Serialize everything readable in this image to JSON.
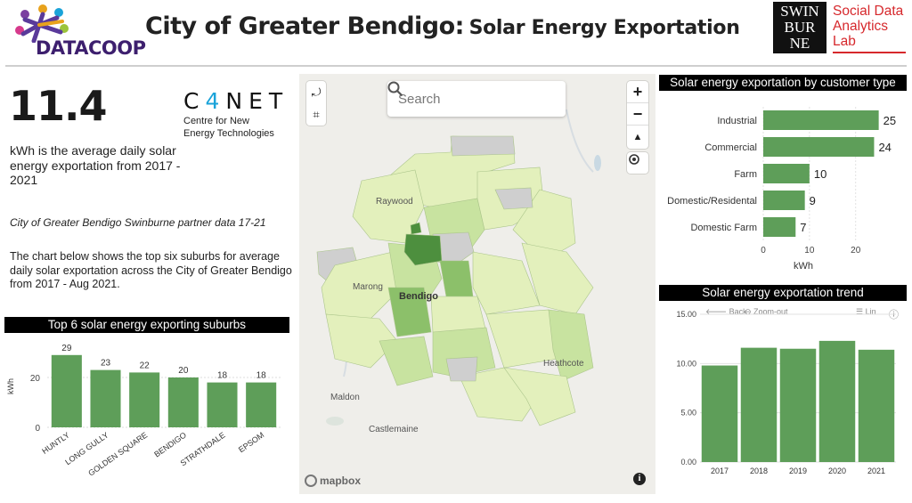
{
  "header": {
    "datacoop_logo_text": "DATACOOP",
    "title_main": "City of Greater Bendigo:",
    "title_sub": "Solar Energy Exportation",
    "swinburne_logo_lines": [
      "SWIN",
      "BUR",
      "NE"
    ],
    "sdal_logo_lines": [
      "Social Data",
      "Analytics",
      "Lab"
    ]
  },
  "kpi": {
    "value": "11.4",
    "description": "kWh is the average daily solar energy exportation from 2017 - 2021"
  },
  "c4net": {
    "logo_word_parts": [
      "C",
      "4",
      "NET"
    ],
    "subtitle_lines": [
      "Centre for New",
      "Energy Technologies"
    ]
  },
  "source_note": "City of Greater Bendigo Swinburne partner data 17-21",
  "chart_description": "The chart below shows the top six suburbs for average daily solar exportation across the City of Greater Bendigo from 2017 - Aug 2021.",
  "map": {
    "search_placeholder": "Search",
    "places": {
      "raywood": "Raywood",
      "marong": "Marong",
      "bendigo": "Bendigo",
      "heathcote": "Heathcote",
      "maldon": "Maldon",
      "castlemaine": "Castlemaine"
    },
    "attribution": "mapbox",
    "info_label": "i",
    "zoom_in": "+",
    "zoom_out": "−",
    "colors": {
      "dark": "#4d8f3e",
      "mid": "#8cc06a",
      "light": "#c8e3a0",
      "pale": "#e3f0bc",
      "nodata": "#cfcfcf"
    }
  },
  "trend_toolbar": {
    "back": "Back",
    "zoom_out": "Zoom-out",
    "lin": "Lin"
  },
  "chart_data": [
    {
      "type": "bar",
      "title": "Top 6 solar energy exporting suburbs",
      "categories": [
        "HUNTLY",
        "LONG GULLY",
        "GOLDEN SQUARE",
        "BENDIGO",
        "STRATHDALE",
        "EPSOM"
      ],
      "values": [
        29,
        23,
        22,
        20,
        18,
        18
      ],
      "ylabel": "kWh",
      "yticks": [
        0,
        20
      ],
      "ylim": [
        0,
        30
      ],
      "color": "#5e9e59"
    },
    {
      "type": "bar",
      "orientation": "horizontal",
      "title": "Solar energy exportation by customer type",
      "categories": [
        "Industrial",
        "Commercial",
        "Farm",
        "Domestic/Residental",
        "Domestic Farm"
      ],
      "values": [
        25,
        24,
        10,
        9,
        7
      ],
      "xlabel": "kWh",
      "xticks": [
        0,
        10,
        20
      ],
      "xlim": [
        0,
        27
      ],
      "color": "#5e9e59"
    },
    {
      "type": "bar",
      "title": "Solar energy exportation trend",
      "categories": [
        "2017",
        "2018",
        "2019",
        "2020",
        "2021"
      ],
      "values": [
        9.8,
        11.6,
        11.5,
        12.3,
        11.4
      ],
      "yticks": [
        "0.00",
        "5.00",
        "10.00",
        "15.00"
      ],
      "ylim": [
        0,
        15
      ],
      "color": "#5e9e59"
    }
  ]
}
